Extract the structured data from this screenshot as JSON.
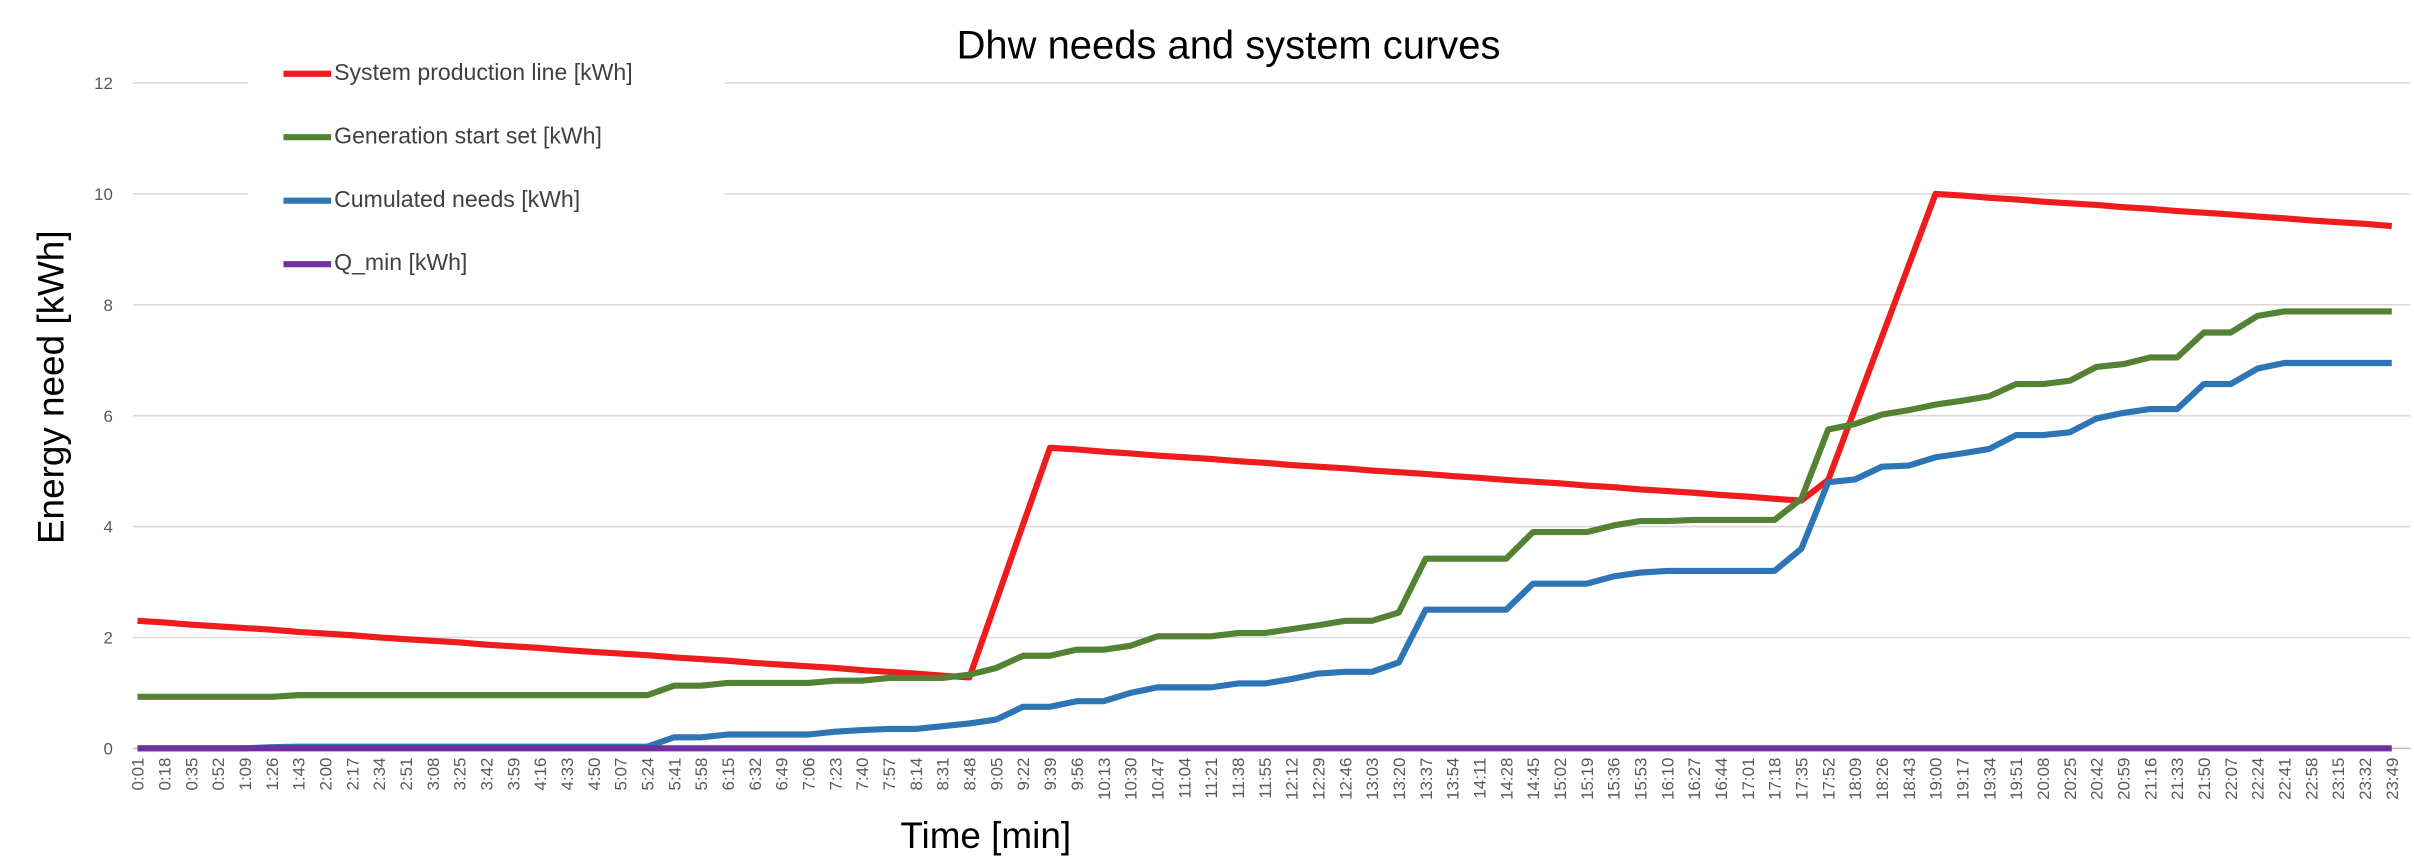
{
  "chart_data": {
    "type": "line",
    "title": "Dhw needs and system curves",
    "x_label": "Time [min]",
    "y_label": "Energy need [kWh]",
    "categories": [
      "0:01",
      "0:18",
      "0:35",
      "0:52",
      "1:09",
      "1:26",
      "1:43",
      "2:00",
      "2:17",
      "2:34",
      "2:51",
      "3:08",
      "3:25",
      "3:42",
      "3:59",
      "4:16",
      "4:33",
      "4:50",
      "5:07",
      "5:24",
      "5:41",
      "5:58",
      "6:15",
      "6:32",
      "6:49",
      "7:06",
      "7:23",
      "7:40",
      "7:57",
      "8:14",
      "8:31",
      "8:48",
      "9:05",
      "9:22",
      "9:39",
      "9:56",
      "10:13",
      "10:30",
      "10:47",
      "11:04",
      "11:21",
      "11:38",
      "11:55",
      "12:12",
      "12:29",
      "12:46",
      "13:03",
      "13:20",
      "13:37",
      "13:54",
      "14:11",
      "14:28",
      "14:45",
      "15:02",
      "15:19",
      "15:36",
      "15:53",
      "16:10",
      "16:27",
      "16:44",
      "17:01",
      "17:18",
      "17:35",
      "17:52",
      "18:09",
      "18:26",
      "18:43",
      "19:00",
      "19:17",
      "19:34",
      "19:51",
      "20:08",
      "20:25",
      "20:42",
      "20:59",
      "21:16",
      "21:33",
      "21:50",
      "22:07",
      "22:24",
      "22:41",
      "22:58",
      "23:15",
      "23:32",
      "23:49"
    ],
    "series": [
      {
        "name": "System production line [kWh]",
        "color": "#ee1c1c",
        "values": [
          2.3,
          2.27,
          2.23,
          2.2,
          2.17,
          2.14,
          2.1,
          2.07,
          2.04,
          2.0,
          1.97,
          1.94,
          1.91,
          1.87,
          1.84,
          1.81,
          1.77,
          1.74,
          1.71,
          1.68,
          1.64,
          1.61,
          1.58,
          1.54,
          1.51,
          1.48,
          1.45,
          1.41,
          1.38,
          1.35,
          1.31,
          1.28,
          2.66,
          4.04,
          5.42,
          5.39,
          5.35,
          5.32,
          5.28,
          5.25,
          5.22,
          5.18,
          5.15,
          5.11,
          5.08,
          5.05,
          5.01,
          4.98,
          4.95,
          4.91,
          4.88,
          4.84,
          4.81,
          4.78,
          4.74,
          4.71,
          4.67,
          4.64,
          4.61,
          4.57,
          4.54,
          4.5,
          4.47,
          4.84,
          6.13,
          7.42,
          8.71,
          10.0,
          9.97,
          9.93,
          9.9,
          9.86,
          9.83,
          9.8,
          9.76,
          9.73,
          9.69,
          9.66,
          9.63,
          9.59,
          9.56,
          9.52,
          9.49,
          9.46,
          9.42
        ]
      },
      {
        "name": "Generation start set [kWh]",
        "color": "#548235",
        "values": [
          0.93,
          0.93,
          0.93,
          0.93,
          0.93,
          0.93,
          0.96,
          0.96,
          0.96,
          0.96,
          0.96,
          0.96,
          0.96,
          0.96,
          0.96,
          0.96,
          0.96,
          0.96,
          0.96,
          0.96,
          1.13,
          1.13,
          1.18,
          1.18,
          1.18,
          1.18,
          1.22,
          1.22,
          1.27,
          1.27,
          1.27,
          1.33,
          1.45,
          1.67,
          1.67,
          1.78,
          1.78,
          1.85,
          2.02,
          2.02,
          2.02,
          2.08,
          2.08,
          2.15,
          2.22,
          2.3,
          2.3,
          2.45,
          3.42,
          3.42,
          3.42,
          3.42,
          3.9,
          3.9,
          3.9,
          4.02,
          4.1,
          4.1,
          4.12,
          4.12,
          4.12,
          4.12,
          4.5,
          5.75,
          5.85,
          6.02,
          6.1,
          6.2,
          6.27,
          6.35,
          6.57,
          6.57,
          6.63,
          6.88,
          6.93,
          7.05,
          7.05,
          7.5,
          7.5,
          7.8,
          7.88,
          7.88,
          7.88,
          7.88,
          7.88
        ]
      },
      {
        "name": "Cumulated needs [kWh]",
        "color": "#2e75b6",
        "values": [
          0,
          0,
          0,
          0,
          0,
          0.02,
          0.03,
          0.03,
          0.03,
          0.03,
          0.03,
          0.03,
          0.03,
          0.03,
          0.03,
          0.03,
          0.03,
          0.03,
          0.03,
          0.03,
          0.2,
          0.2,
          0.25,
          0.25,
          0.25,
          0.25,
          0.3,
          0.33,
          0.35,
          0.35,
          0.4,
          0.45,
          0.52,
          0.75,
          0.75,
          0.85,
          0.85,
          1.0,
          1.1,
          1.1,
          1.1,
          1.17,
          1.17,
          1.25,
          1.35,
          1.38,
          1.38,
          1.55,
          2.5,
          2.5,
          2.5,
          2.5,
          2.97,
          2.97,
          2.97,
          3.1,
          3.17,
          3.2,
          3.2,
          3.2,
          3.2,
          3.2,
          3.6,
          4.8,
          4.85,
          5.08,
          5.1,
          5.25,
          5.32,
          5.4,
          5.65,
          5.65,
          5.7,
          5.95,
          6.05,
          6.12,
          6.12,
          6.57,
          6.57,
          6.85,
          6.95,
          6.95,
          6.95,
          6.95,
          6.95
        ]
      },
      {
        "name": "Q_min [kWh]",
        "color": "#7030a0",
        "values": [
          0,
          0,
          0,
          0,
          0,
          0,
          0,
          0,
          0,
          0,
          0,
          0,
          0,
          0,
          0,
          0,
          0,
          0,
          0,
          0,
          0,
          0,
          0,
          0,
          0,
          0,
          0,
          0,
          0,
          0,
          0,
          0,
          0,
          0,
          0,
          0,
          0,
          0,
          0,
          0,
          0,
          0,
          0,
          0,
          0,
          0,
          0,
          0,
          0,
          0,
          0,
          0,
          0,
          0,
          0,
          0,
          0,
          0,
          0,
          0,
          0,
          0,
          0,
          0,
          0,
          0,
          0,
          0,
          0,
          0,
          0,
          0,
          0,
          0,
          0,
          0,
          0,
          0,
          0,
          0,
          0,
          0,
          0,
          0,
          0
        ]
      }
    ],
    "ylim": [
      0,
      12
    ],
    "yticks": [
      0,
      2,
      4,
      6,
      8,
      10,
      12
    ],
    "grid": true,
    "legend": "upper-left"
  }
}
